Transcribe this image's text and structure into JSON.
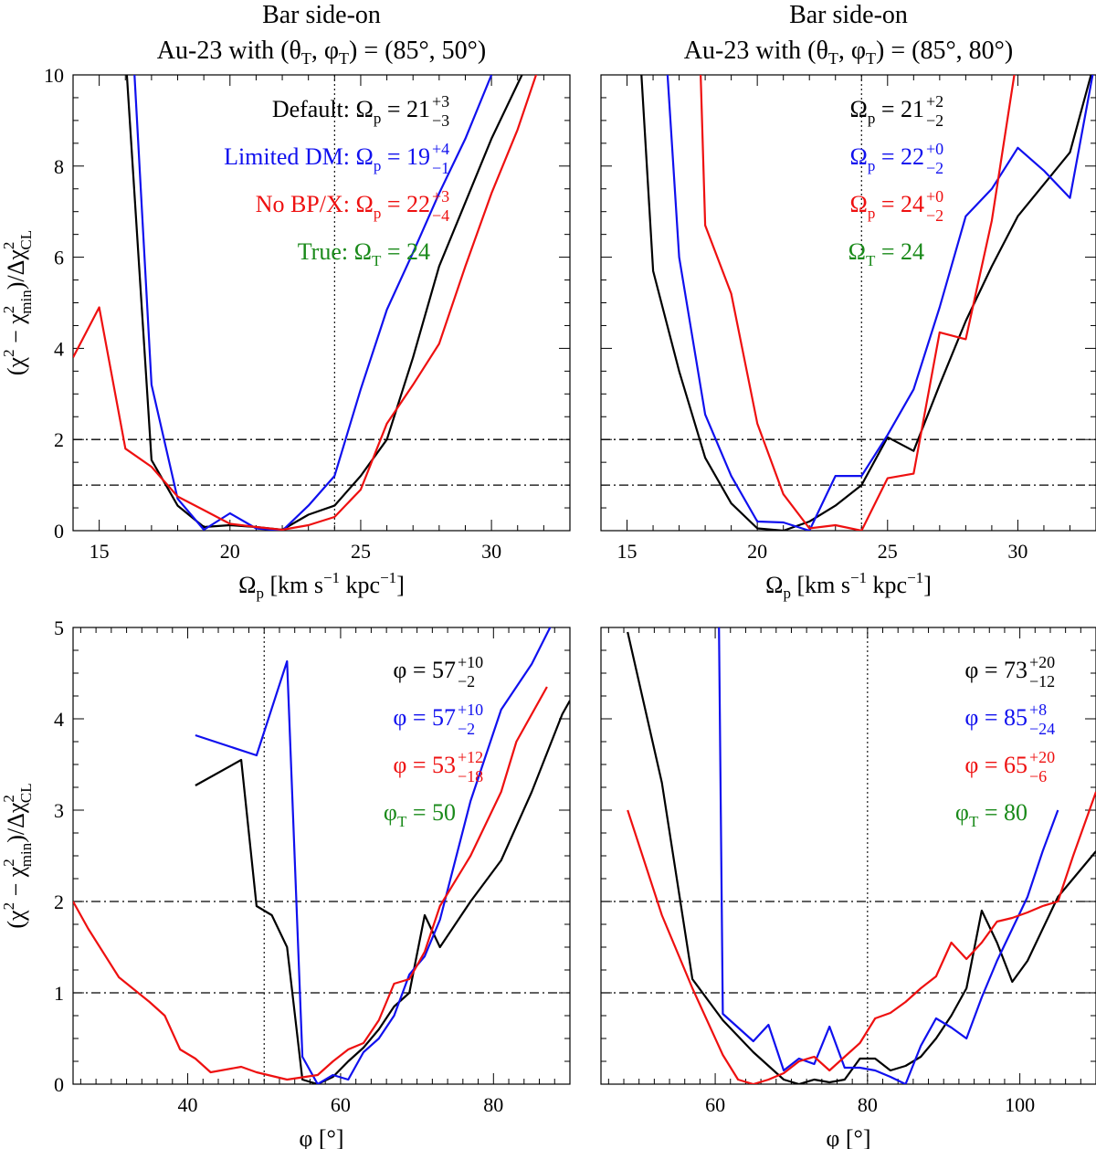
{
  "chart_data": [
    {
      "id": "tl",
      "type": "line",
      "title_line1": "Bar side-on",
      "title_line2": "Au-23 with (θ_T, φ_T) = (85°, 50°)",
      "xlabel": "Ω_p [km s^-1 kpc^-1]",
      "ylabel": "(χ² − χ²_min)/Δχ²_CL",
      "xlim": [
        14,
        33
      ],
      "ylim": [
        0,
        10
      ],
      "xticks": [
        15,
        20,
        25,
        30
      ],
      "yticks": [
        0,
        2,
        4,
        6,
        8,
        10
      ],
      "reference_lines": {
        "horizontal": [
          1,
          2
        ],
        "vertical": [
          24
        ]
      },
      "series": [
        {
          "name": "Default",
          "color": "#000000",
          "x": [
            16,
            17,
            18,
            19,
            20,
            21,
            22,
            23,
            24,
            25,
            26,
            27,
            28,
            29,
            30,
            31,
            32
          ],
          "y": [
            10.5,
            1.55,
            0.55,
            0.08,
            0.12,
            0.08,
            0.02,
            0.35,
            0.55,
            1.2,
            2.0,
            3.8,
            5.8,
            7.2,
            8.6,
            9.8,
            11
          ]
        },
        {
          "name": "Limited DM",
          "color": "#1010ee",
          "x": [
            16.3,
            17,
            18,
            19,
            20,
            21,
            22,
            23,
            24,
            25,
            26,
            27,
            28,
            29,
            30
          ],
          "y": [
            10.5,
            3.2,
            0.7,
            0.02,
            0.38,
            0.05,
            0.0,
            0.55,
            1.2,
            3.1,
            4.85,
            6.1,
            7.4,
            8.6,
            10
          ]
        },
        {
          "name": "No BP/X",
          "color": "#ee1010",
          "x": [
            14,
            15,
            16,
            17,
            18,
            19,
            20,
            21,
            22,
            23,
            24,
            25,
            26,
            27,
            28,
            29,
            30,
            31,
            32
          ],
          "y": [
            3.8,
            4.9,
            1.8,
            1.4,
            0.75,
            0.45,
            0.15,
            0.08,
            0.02,
            0.12,
            0.3,
            0.9,
            2.35,
            3.2,
            4.1,
            5.8,
            7.4,
            8.8,
            10.5
          ]
        }
      ],
      "annotations": [
        {
          "color": "#000000",
          "text": "Default: Ω_p = 21 (+3 / −3)",
          "label": "Default: ",
          "sym": "Ω",
          "sub": "p",
          "eq": " = 21",
          "sup": "+3",
          "lo": "−3"
        },
        {
          "color": "#1010ee",
          "text": "Limited DM: Ω_p = 19 (+4 / −1)",
          "label": "Limited DM: ",
          "sym": "Ω",
          "sub": "p",
          "eq": " = 19",
          "sup": "+4",
          "lo": "−1"
        },
        {
          "color": "#ee1010",
          "text": "No BP/X: Ω_p = 22 (+3 / −4)",
          "label": "No BP/X: ",
          "sym": "Ω",
          "sub": "p",
          "eq": " = 22",
          "sup": "+3",
          "lo": "−4"
        },
        {
          "color": "#1a8a1a",
          "text": "True: Ω_T = 24",
          "label": "True: ",
          "sym": "Ω",
          "sub": "T",
          "eq": " = 24",
          "sup": "",
          "lo": ""
        }
      ]
    },
    {
      "id": "tr",
      "type": "line",
      "title_line1": "Bar side-on",
      "title_line2": "Au-23 with (θ_T, φ_T) = (85°, 80°)",
      "xlabel": "Ω_p [km s^-1 kpc^-1]",
      "ylabel": "",
      "xlim": [
        14,
        33
      ],
      "ylim": [
        0,
        10
      ],
      "xticks": [
        15,
        20,
        25,
        30
      ],
      "yticks": [],
      "reference_lines": {
        "horizontal": [
          1,
          2
        ],
        "vertical": [
          24
        ]
      },
      "series": [
        {
          "name": "Default",
          "color": "#000000",
          "x": [
            15.5,
            16,
            17,
            18,
            19,
            20,
            21,
            22,
            23,
            24,
            25,
            26,
            27,
            28,
            29,
            30,
            31,
            32,
            33
          ],
          "y": [
            10.5,
            5.7,
            3.5,
            1.6,
            0.6,
            0.05,
            0.0,
            0.2,
            0.55,
            1.0,
            2.05,
            1.75,
            3.2,
            4.6,
            5.8,
            6.9,
            7.6,
            8.3,
            10.4
          ]
        },
        {
          "name": "Limited DM",
          "color": "#1010ee",
          "x": [
            16.5,
            17,
            18,
            19,
            20,
            21,
            22,
            23,
            24,
            25,
            26,
            27,
            28,
            29,
            30,
            31,
            32,
            33
          ],
          "y": [
            10.5,
            6.0,
            2.55,
            1.2,
            0.2,
            0.18,
            0.0,
            1.2,
            1.2,
            2.1,
            3.1,
            4.9,
            6.9,
            7.5,
            8.4,
            7.9,
            7.3,
            10.4
          ]
        },
        {
          "name": "No BP/X",
          "color": "#ee1010",
          "x": [
            17.8,
            18,
            19,
            20,
            21,
            22,
            23,
            24,
            25,
            26,
            27,
            28,
            29,
            30
          ],
          "y": [
            10.5,
            6.7,
            5.2,
            2.35,
            0.8,
            0.05,
            0.12,
            0.0,
            1.15,
            1.25,
            4.35,
            4.2,
            6.8,
            10.5
          ]
        }
      ],
      "annotations": [
        {
          "color": "#000000",
          "text": "Ω_p = 21 (+2 / −2)",
          "label": "",
          "sym": "Ω",
          "sub": "p",
          "eq": " = 21",
          "sup": "+2",
          "lo": "−2"
        },
        {
          "color": "#1010ee",
          "text": "Ω_p = 22 (+0 / −2)",
          "label": "",
          "sym": "Ω",
          "sub": "p",
          "eq": " = 22",
          "sup": "+0",
          "lo": "−2"
        },
        {
          "color": "#ee1010",
          "text": "Ω_p = 24 (+0 / −2)",
          "label": "",
          "sym": "Ω",
          "sub": "p",
          "eq": " = 24",
          "sup": "+0",
          "lo": "−2"
        },
        {
          "color": "#1a8a1a",
          "text": "Ω_T = 24",
          "label": "",
          "sym": "Ω",
          "sub": "T",
          "eq": " = 24",
          "sup": "",
          "lo": ""
        }
      ]
    },
    {
      "id": "bl",
      "type": "line",
      "title_line1": "",
      "title_line2": "",
      "xlabel": "φ [°]",
      "ylabel": "(χ² − χ²_min)/Δχ²_CL",
      "xlim": [
        25,
        90
      ],
      "ylim": [
        0,
        5
      ],
      "xticks": [
        40,
        60,
        80
      ],
      "yticks": [
        0,
        1,
        2,
        3,
        4,
        5
      ],
      "reference_lines": {
        "horizontal": [
          1,
          2
        ],
        "vertical": [
          50
        ]
      },
      "series": [
        {
          "name": "Default",
          "color": "#000000",
          "x": [
            41,
            47,
            49,
            51,
            53,
            55,
            57,
            59,
            61,
            63,
            65,
            67,
            69,
            71,
            73,
            77,
            81,
            85,
            89,
            90
          ],
          "y": [
            3.27,
            3.55,
            1.95,
            1.85,
            1.5,
            0.05,
            0.0,
            0.08,
            0.25,
            0.4,
            0.6,
            0.85,
            1.0,
            1.85,
            1.5,
            2.0,
            2.45,
            3.2,
            4.05,
            4.2
          ]
        },
        {
          "name": "Limited DM",
          "color": "#1010ee",
          "x": [
            41,
            49,
            53,
            55,
            57,
            59,
            61,
            63,
            65,
            67,
            69,
            71,
            73,
            77,
            81,
            85,
            88
          ],
          "y": [
            3.82,
            3.6,
            4.63,
            0.3,
            0.0,
            0.1,
            0.05,
            0.35,
            0.5,
            0.75,
            1.2,
            1.4,
            1.8,
            3.1,
            4.1,
            4.6,
            5.1
          ]
        },
        {
          "name": "No BP/X",
          "color": "#ee1010",
          "x": [
            25,
            27,
            31,
            35,
            37,
            39,
            41,
            43,
            47,
            49,
            53,
            57,
            59,
            61,
            63,
            65,
            67,
            69,
            71,
            73,
            77,
            81,
            83,
            87
          ],
          "y": [
            2.0,
            1.7,
            1.17,
            0.9,
            0.75,
            0.38,
            0.28,
            0.13,
            0.19,
            0.13,
            0.05,
            0.1,
            0.25,
            0.38,
            0.45,
            0.7,
            1.1,
            1.15,
            1.45,
            1.95,
            2.5,
            3.2,
            3.75,
            4.35
          ]
        }
      ],
      "annotations": [
        {
          "color": "#000000",
          "text": "φ = 57 (+10 / −2)",
          "label": "",
          "sym": "φ",
          "sub": "",
          "eq": " = 57",
          "sup": "+10",
          "lo": "−2"
        },
        {
          "color": "#1010ee",
          "text": "φ = 57 (+10 / −2)",
          "label": "",
          "sym": "φ",
          "sub": "",
          "eq": " = 57",
          "sup": "+10",
          "lo": "−2"
        },
        {
          "color": "#ee1010",
          "text": "φ = 53 (+12 / −18)",
          "label": "",
          "sym": "φ",
          "sub": "",
          "eq": " = 53",
          "sup": "+12",
          "lo": "−18"
        },
        {
          "color": "#1a8a1a",
          "text": "φ_T = 50",
          "label": "",
          "sym": "φ",
          "sub": "T",
          "eq": " = 50",
          "sup": "",
          "lo": ""
        }
      ]
    },
    {
      "id": "br",
      "type": "line",
      "title_line1": "",
      "title_line2": "",
      "xlabel": "φ [°]",
      "ylabel": "",
      "xlim": [
        45,
        110
      ],
      "ylim": [
        0,
        5
      ],
      "xticks": [
        60,
        80,
        100
      ],
      "yticks": [],
      "reference_lines": {
        "horizontal": [
          1,
          2
        ],
        "vertical": [
          80
        ]
      },
      "series": [
        {
          "name": "Default",
          "color": "#000000",
          "x": [
            48.5,
            53,
            57,
            61,
            65,
            69,
            71,
            73,
            75,
            77,
            79,
            81,
            83,
            85,
            87,
            89,
            91,
            93,
            95,
            97,
            99,
            101,
            105,
            110
          ],
          "y": [
            4.95,
            3.3,
            1.15,
            0.7,
            0.35,
            0.05,
            0.0,
            0.05,
            0.02,
            0.05,
            0.28,
            0.28,
            0.15,
            0.2,
            0.3,
            0.5,
            0.75,
            1.05,
            1.9,
            1.55,
            1.12,
            1.35,
            2.05,
            2.55
          ]
        },
        {
          "name": "Limited DM",
          "color": "#1010ee",
          "x": [
            60.5,
            61,
            63,
            65,
            67,
            69,
            71,
            73,
            75,
            77,
            79,
            81,
            83,
            85,
            87,
            89,
            91,
            93,
            95,
            97,
            99,
            101,
            103,
            105
          ],
          "y": [
            5.0,
            0.77,
            0.62,
            0.47,
            0.65,
            0.15,
            0.28,
            0.22,
            0.63,
            0.18,
            0.18,
            0.15,
            0.08,
            0.0,
            0.42,
            0.72,
            0.62,
            0.5,
            0.95,
            1.35,
            1.7,
            2.05,
            2.55,
            3.0
          ]
        },
        {
          "name": "No BP/X",
          "color": "#ee1010",
          "x": [
            48.5,
            53,
            57,
            61,
            63,
            65,
            67,
            69,
            71,
            73,
            75,
            77,
            79,
            81,
            83,
            85,
            87,
            89,
            91,
            93,
            95,
            97,
            99,
            101,
            103,
            105,
            107,
            110
          ],
          "y": [
            3.0,
            1.85,
            1.05,
            0.32,
            0.05,
            0.0,
            0.05,
            0.12,
            0.25,
            0.3,
            0.15,
            0.3,
            0.45,
            0.72,
            0.78,
            0.9,
            1.05,
            1.18,
            1.55,
            1.37,
            1.55,
            1.78,
            1.82,
            1.88,
            1.95,
            2.0,
            2.5,
            3.2
          ]
        }
      ],
      "annotations": [
        {
          "color": "#000000",
          "text": "φ = 73 (+20 / −12)",
          "label": "",
          "sym": "φ",
          "sub": "",
          "eq": " = 73",
          "sup": "+20",
          "lo": "−12"
        },
        {
          "color": "#1010ee",
          "text": "φ = 85 (+8 / −24)",
          "label": "",
          "sym": "φ",
          "sub": "",
          "eq": " = 85",
          "sup": "+8",
          "lo": "−24"
        },
        {
          "color": "#ee1010",
          "text": "φ = 65 (+20 / −6)",
          "label": "",
          "sym": "φ",
          "sub": "",
          "eq": " = 65",
          "sup": "+20",
          "lo": "−6"
        },
        {
          "color": "#1a8a1a",
          "text": "φ_T = 80",
          "label": "",
          "sym": "φ",
          "sub": "T",
          "eq": " = 80",
          "sup": "",
          "lo": ""
        }
      ]
    }
  ]
}
